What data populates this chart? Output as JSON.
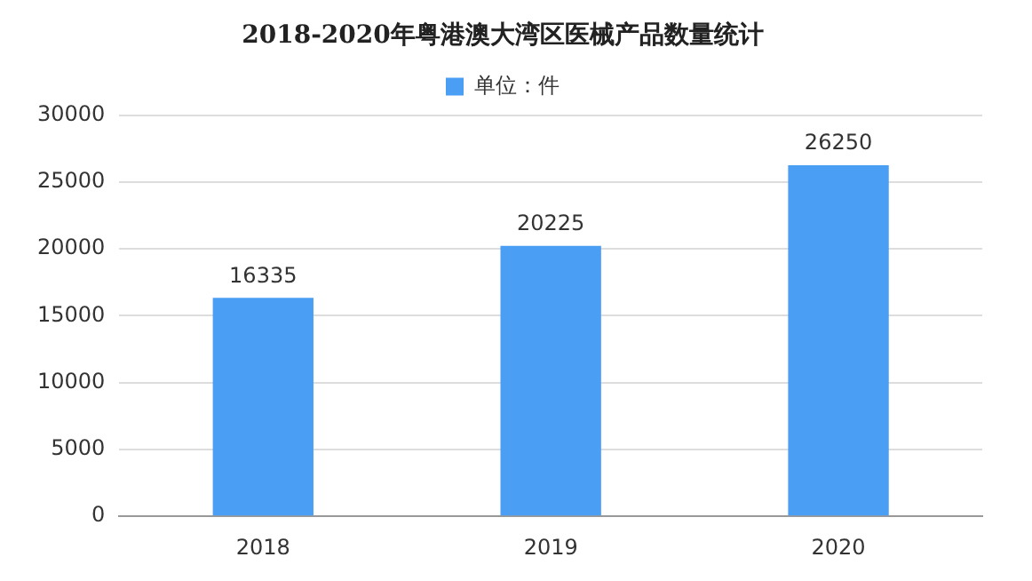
{
  "chart_data": {
    "type": "bar",
    "title": "2018-2020年粤港澳大湾区医械产品数量统计",
    "categories": [
      "2018",
      "2019",
      "2020"
    ],
    "series": [
      {
        "name": "单位：件",
        "color": "#4a9ff5",
        "values": [
          16335,
          20225,
          26250
        ]
      }
    ],
    "ylim": [
      0,
      30000
    ],
    "yticks": [
      0,
      5000,
      10000,
      15000,
      20000,
      25000,
      30000
    ],
    "grid": "y",
    "legend": "top",
    "data_labels": true
  }
}
